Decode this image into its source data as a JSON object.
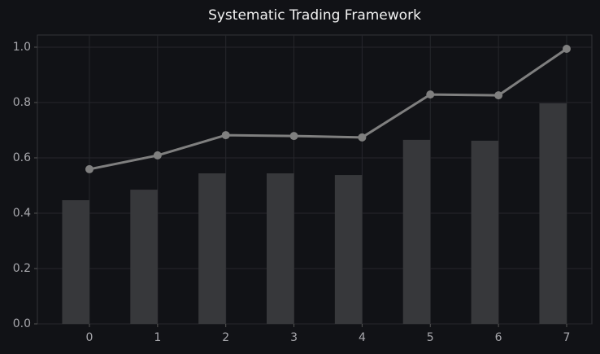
{
  "chart_data": {
    "type": "combo",
    "title": "Systematic Trading Framework",
    "x": [
      0,
      1,
      2,
      3,
      4,
      5,
      6,
      7
    ],
    "series": [
      {
        "type": "bar",
        "color": "#37383b",
        "values": [
          0.447,
          0.485,
          0.544,
          0.544,
          0.538,
          0.665,
          0.662,
          0.797
        ]
      },
      {
        "type": "line",
        "color": "#7f7f7f",
        "values": [
          0.559,
          0.609,
          0.682,
          0.679,
          0.674,
          0.829,
          0.826,
          0.994
        ]
      }
    ],
    "xlim": [
      -0.763,
      7.37
    ],
    "xticks": [
      0,
      1,
      2,
      3,
      4,
      5,
      6,
      7
    ],
    "ylim": [
      0,
      1.044
    ],
    "yticks": [
      {
        "value": 0,
        "label": "0.0"
      },
      0.2,
      0.4,
      0.6,
      0.8,
      {
        "value": 1,
        "label": "1.0"
      }
    ],
    "grid": true
  }
}
